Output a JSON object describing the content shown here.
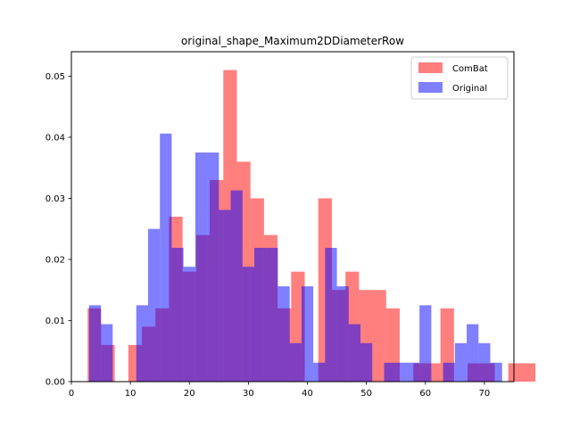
{
  "chart_data": {
    "type": "bar",
    "title": "original_shape_Maximum2DDiameterRow",
    "xlabel": "",
    "ylabel": "",
    "xlim": [
      0,
      75
    ],
    "ylim": [
      0,
      0.054
    ],
    "xticks": [
      0,
      10,
      20,
      30,
      40,
      50,
      60,
      70
    ],
    "yticks": [
      0.0,
      0.01,
      0.02,
      0.03,
      0.04,
      0.05
    ],
    "xtick_labels": [
      "0",
      "10",
      "20",
      "30",
      "40",
      "50",
      "60",
      "70"
    ],
    "ytick_labels": [
      "0.00",
      "0.01",
      "0.02",
      "0.03",
      "0.04",
      "0.05"
    ],
    "grid": false,
    "legend_position": "top-right",
    "series": [
      {
        "name": "ComBat",
        "color": "#ff0000",
        "opacity": 0.5,
        "bin_start": 2.75,
        "bin_width": 2.3,
        "values": [
          0.012,
          0.006,
          0.0,
          0.006,
          0.009,
          0.012,
          0.027,
          0.018,
          0.024,
          0.033,
          0.051,
          0.036,
          0.03,
          0.024,
          0.012,
          0.018,
          0.0,
          0.03,
          0.015,
          0.018,
          0.015,
          0.015,
          0.012,
          0.0,
          0.003,
          0.003,
          0.012,
          0.0,
          0.003,
          0.003,
          0.0,
          0.003,
          0.003
        ]
      },
      {
        "name": "Original",
        "color": "#0000ff",
        "opacity": 0.5,
        "bin_start": 3.0,
        "bin_width": 2.0,
        "values": [
          0.0125,
          0.0094,
          0.0,
          0.0,
          0.0125,
          0.025,
          0.0406,
          0.0219,
          0.0188,
          0.0375,
          0.0375,
          0.0281,
          0.0313,
          0.0188,
          0.0219,
          0.0219,
          0.0156,
          0.0063,
          0.0156,
          0.0031,
          0.0219,
          0.0156,
          0.0094,
          0.0063,
          0.0,
          0.0031,
          0.0031,
          0.0031,
          0.0125,
          0.0,
          0.0031,
          0.0063,
          0.0094,
          0.0063,
          0.0031
        ]
      }
    ]
  }
}
